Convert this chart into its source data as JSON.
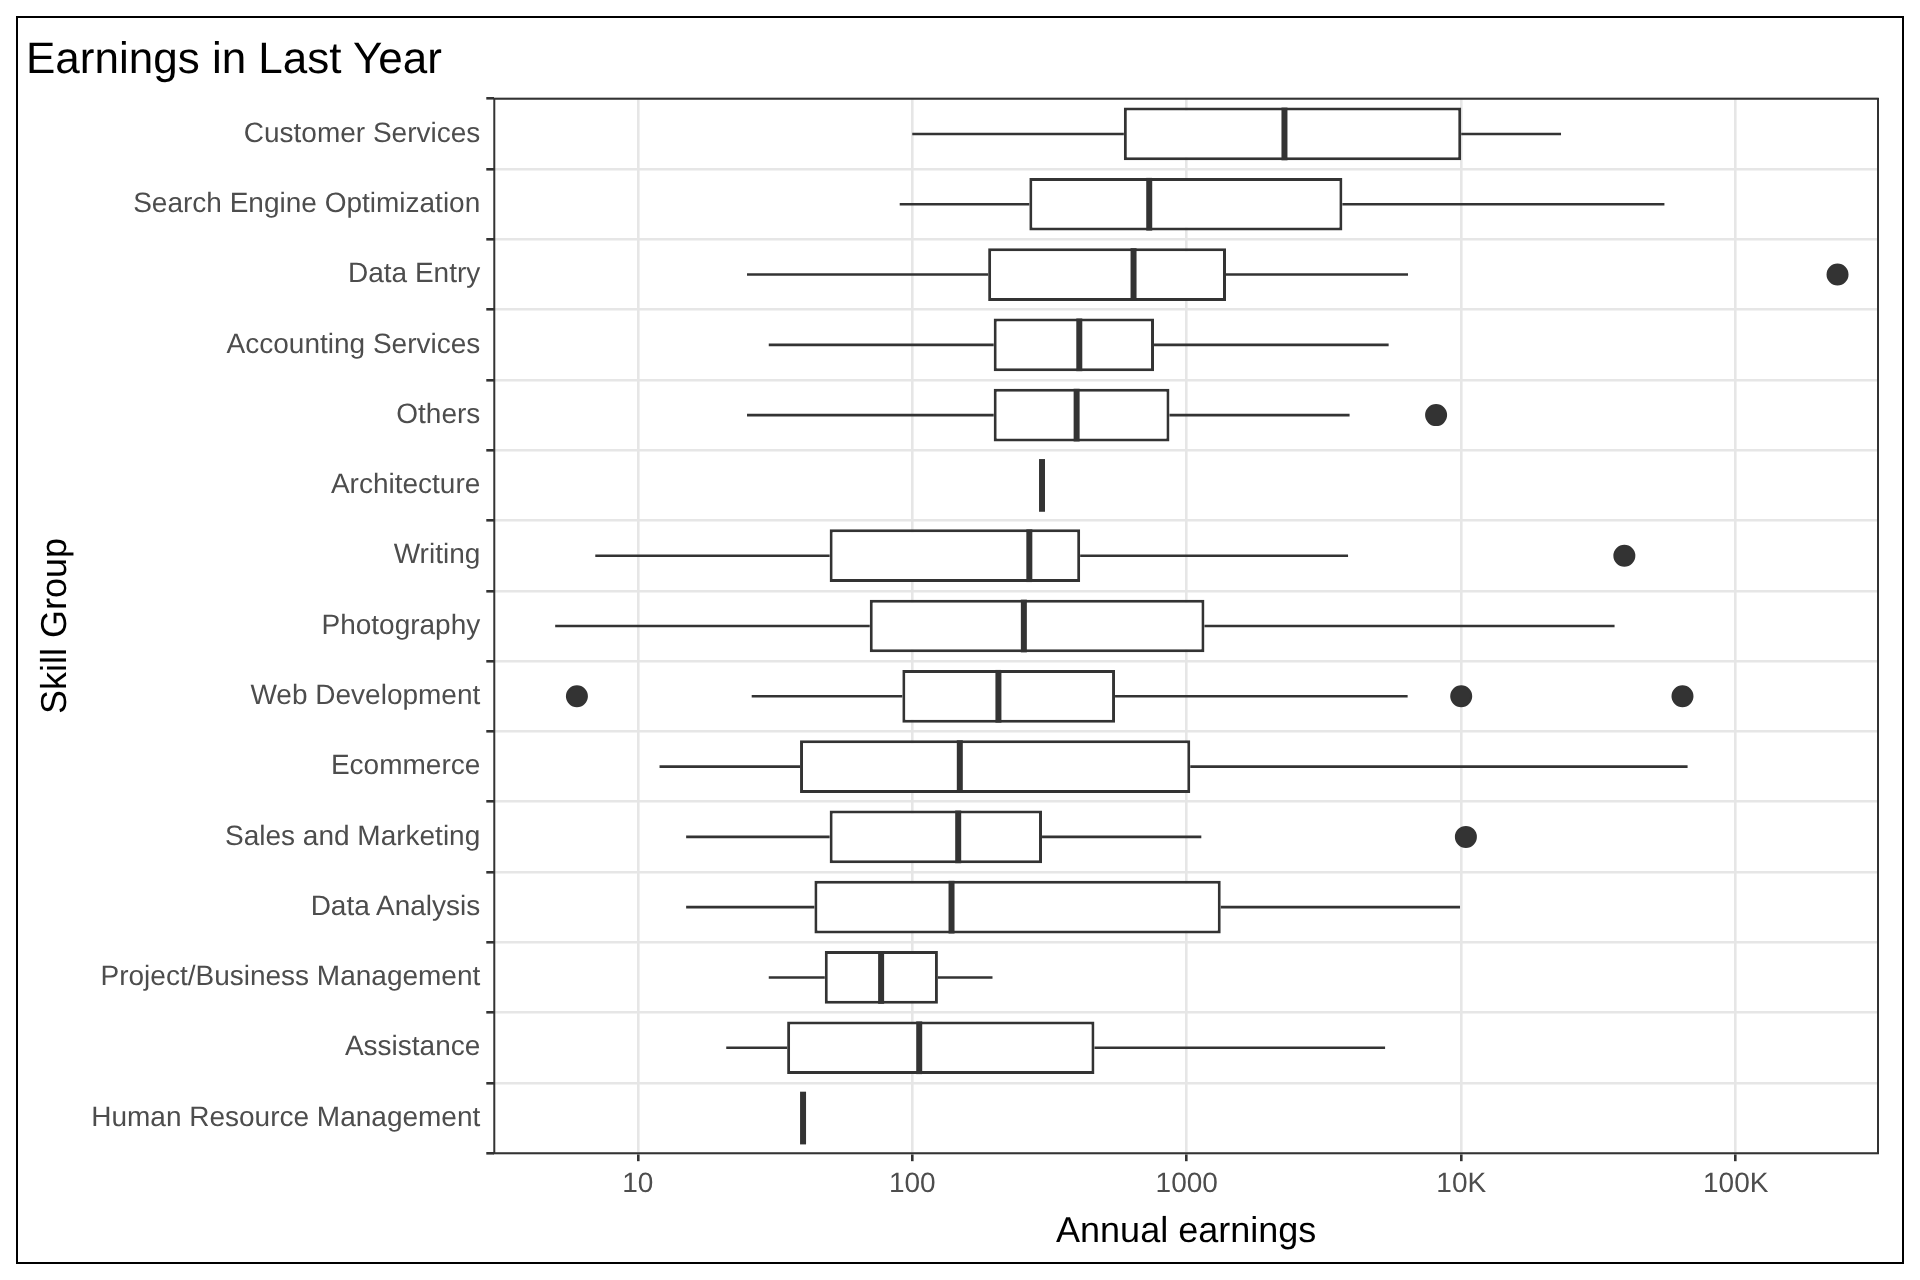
{
  "chart_data": {
    "type": "box",
    "orientation": "horizontal",
    "title": "Earnings in Last Year",
    "xlabel": "Annual earnings",
    "ylabel": "Skill Group",
    "log": "x",
    "grid": true,
    "legend": false,
    "categories": [
      "Customer Services",
      "Search Engine Optimization",
      "Data Entry",
      "Accounting Services",
      "Others",
      "Architecture",
      "Writing",
      "Photography",
      "Web Development",
      "Ecommerce",
      "Sales and Marketing",
      "Data Analysis",
      "Project/Business Management",
      "Assistance",
      "Human Resource Management"
    ],
    "boxes": [
      {
        "low": 100,
        "q1": 590,
        "median": 2270,
        "q3": 10000,
        "high": 23100
      },
      {
        "low": 90,
        "q1": 267,
        "median": 730,
        "q3": 3690,
        "high": 55000
      },
      {
        "low": 25,
        "q1": 189,
        "median": 640,
        "q3": 1390,
        "high": 6400,
        "outliers": [
          235000
        ]
      },
      {
        "low": 30,
        "q1": 198,
        "median": 406,
        "q3": 760,
        "high": 5440
      },
      {
        "low": 25,
        "q1": 198,
        "median": 397,
        "q3": 865,
        "high": 3920,
        "outliers": [
          8100
        ]
      },
      {
        "low": 297,
        "q1": 297,
        "median": 297,
        "q3": 297,
        "high": 297
      },
      {
        "low": 7,
        "q1": 50,
        "median": 267,
        "q3": 409,
        "high": 3870,
        "outliers": [
          39300
        ]
      },
      {
        "low": 5,
        "q1": 70,
        "median": 255,
        "q3": 1160,
        "high": 36200
      },
      {
        "low": 26,
        "q1": 92,
        "median": 206,
        "q3": 548,
        "high": 6380,
        "outliers": [
          6,
          10000,
          64000
        ]
      },
      {
        "low": 12,
        "q1": 39,
        "median": 149,
        "q3": 1030,
        "high": 66800
      },
      {
        "low": 15,
        "q1": 50,
        "median": 147,
        "q3": 297,
        "high": 1130,
        "outliers": [
          10400
        ]
      },
      {
        "low": 15,
        "q1": 44,
        "median": 139,
        "q3": 1330,
        "high": 9900
      },
      {
        "low": 30,
        "q1": 48,
        "median": 77,
        "q3": 124,
        "high": 196
      },
      {
        "low": 21,
        "q1": 35,
        "median": 106,
        "q3": 461,
        "high": 5280
      },
      {
        "low": 40,
        "q1": 40,
        "median": 40,
        "q3": 40,
        "high": 40
      }
    ],
    "xlim": [
      3,
      330000
    ],
    "xticks": [
      10,
      100,
      1000,
      {
        "value": 10000,
        "label": "10K"
      },
      {
        "value": 100000,
        "label": "100K"
      }
    ]
  }
}
